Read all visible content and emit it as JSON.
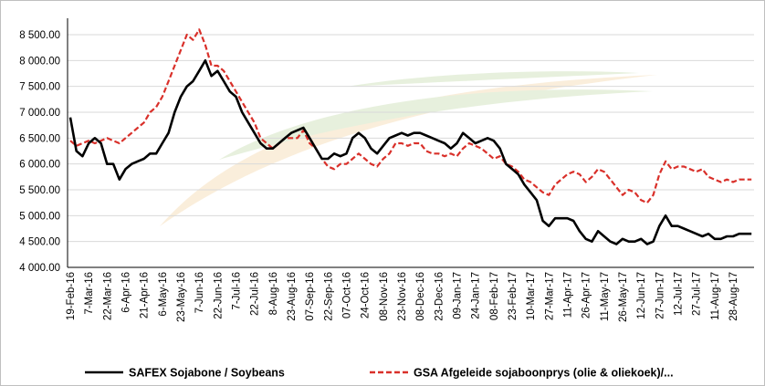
{
  "chart_data": {
    "type": "line",
    "categories": [
      "19-Feb-16",
      null,
      null,
      "7-Mar-16",
      null,
      null,
      "22-Mar-16",
      null,
      null,
      "6-Apr-16",
      null,
      null,
      "21-Apr-16",
      null,
      null,
      "6-May-16",
      null,
      null,
      "23-May-16",
      null,
      null,
      "7-Jun-16",
      null,
      null,
      "22-Jun-16",
      null,
      null,
      "7-Jul-16",
      null,
      null,
      "22-Jul-16",
      null,
      null,
      "8-Aug-16",
      null,
      null,
      "23-Aug-16",
      null,
      null,
      "07-Sep-16",
      null,
      null,
      "22-Sep-16",
      null,
      null,
      "07-Oct-16",
      null,
      null,
      "24-Oct-16",
      null,
      null,
      "08-Nov-16",
      null,
      null,
      "23-Nov-16",
      null,
      null,
      "08-Dec-16",
      null,
      null,
      "23-Dec-16",
      null,
      null,
      "09-Jan-17",
      null,
      null,
      "24-Jan-17",
      null,
      null,
      "08-Feb-17",
      null,
      null,
      "23-Feb-17",
      null,
      null,
      "10-Mar-17",
      null,
      null,
      "27-Mar-17",
      null,
      null,
      "11-Apr-17",
      null,
      null,
      "26-Apr-17",
      null,
      null,
      "11-May-17",
      null,
      null,
      "26-May-17",
      null,
      null,
      "12-Jun-17",
      null,
      null,
      "27-Jun-17",
      null,
      null,
      "12-Jul-17",
      null,
      null,
      "27-Jul-17",
      null,
      null,
      "11-Aug-17",
      null,
      null,
      "28-Aug-17",
      null,
      null,
      null
    ],
    "series": [
      {
        "name": "SAFEX Sojabone / Soybeans",
        "color": "#000000",
        "dash": false,
        "values": [
          6900,
          6250,
          6150,
          6400,
          6500,
          6400,
          6000,
          6000,
          5700,
          5900,
          6000,
          6050,
          6100,
          6200,
          6200,
          6400,
          6600,
          7000,
          7300,
          7500,
          7600,
          7800,
          8000,
          7700,
          7800,
          7600,
          7400,
          7300,
          7000,
          6800,
          6600,
          6400,
          6300,
          6300,
          6400,
          6500,
          6600,
          6650,
          6700,
          6500,
          6300,
          6100,
          6100,
          6200,
          6150,
          6200,
          6500,
          6600,
          6500,
          6300,
          6200,
          6350,
          6500,
          6550,
          6600,
          6550,
          6600,
          6600,
          6550,
          6500,
          6450,
          6400,
          6300,
          6400,
          6600,
          6500,
          6400,
          6450,
          6500,
          6450,
          6300,
          6000,
          5900,
          5800,
          5600,
          5450,
          5300,
          4900,
          4800,
          4950,
          4950,
          4950,
          4900,
          4700,
          4550,
          4500,
          4700,
          4600,
          4500,
          4450,
          4550,
          4500,
          4500,
          4550,
          4450,
          4500,
          4800,
          5000,
          4800,
          4800,
          4750,
          4700,
          4650,
          4600,
          4650,
          4550,
          4550,
          4600,
          4600,
          4650,
          4650,
          4650
        ]
      },
      {
        "name": "GSA Afgeleide sojaboonprys (olie & oliekoek)/...",
        "color": "#d9302a",
        "dash": true,
        "values": [
          6450,
          6350,
          6400,
          6450,
          6400,
          6450,
          6500,
          6450,
          6400,
          6500,
          6600,
          6700,
          6800,
          7000,
          7100,
          7300,
          7600,
          7900,
          8200,
          8500,
          8400,
          8600,
          8300,
          7900,
          7900,
          7800,
          7600,
          7400,
          7200,
          7000,
          6800,
          6500,
          6400,
          6300,
          6400,
          6500,
          6500,
          6500,
          6650,
          6400,
          6300,
          6100,
          5950,
          5900,
          6000,
          6000,
          6100,
          6200,
          6100,
          6000,
          5950,
          6100,
          6200,
          6400,
          6400,
          6350,
          6400,
          6400,
          6250,
          6200,
          6200,
          6150,
          6200,
          6150,
          6300,
          6400,
          6350,
          6300,
          6200,
          6100,
          6150,
          6000,
          5950,
          5850,
          5700,
          5650,
          5550,
          5450,
          5400,
          5600,
          5700,
          5800,
          5850,
          5800,
          5650,
          5750,
          5900,
          5850,
          5700,
          5550,
          5400,
          5500,
          5450,
          5300,
          5250,
          5400,
          5800,
          6050,
          5900,
          5950,
          5950,
          5900,
          5850,
          5900,
          5750,
          5700,
          5650,
          5700,
          5650,
          5700,
          5700,
          5700
        ]
      }
    ],
    "ylim": [
      4000,
      8700
    ],
    "yticks": [
      {
        "value": 4000,
        "label": "4 000.00"
      },
      {
        "value": 4500,
        "label": "4 500.00"
      },
      {
        "value": 5000,
        "label": "5 000.00"
      },
      {
        "value": 5500,
        "label": "5 500.00"
      },
      {
        "value": 6000,
        "label": "6 000.00"
      },
      {
        "value": 6500,
        "label": "6 500.00"
      },
      {
        "value": 7000,
        "label": "7 000.00"
      },
      {
        "value": 7500,
        "label": "7 500.00"
      },
      {
        "value": 8000,
        "label": "8 000.00"
      },
      {
        "value": 8500,
        "label": "8 500.00"
      }
    ],
    "grid": true
  }
}
